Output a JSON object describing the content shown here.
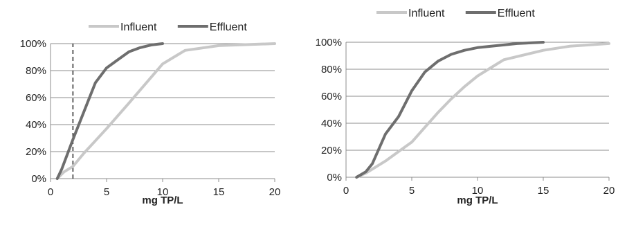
{
  "chart_data": [
    {
      "type": "line",
      "title": "",
      "xlabel": "mg TP/L",
      "ylabel": "",
      "xlim": [
        0,
        20
      ],
      "ylim": [
        0,
        100
      ],
      "x_ticks": [
        "0",
        "5",
        "10",
        "15",
        "20"
      ],
      "y_ticks": [
        "0%",
        "20%",
        "40%",
        "60%",
        "80%",
        "100%"
      ],
      "grid": "horizontal",
      "legend": "top",
      "reference_line": {
        "x": 2,
        "style": "dashed"
      },
      "series": [
        {
          "name": "Influent",
          "color": "#c8c8c8",
          "points": [
            [
              0.6,
              0
            ],
            [
              1.2,
              5
            ],
            [
              2,
              9
            ],
            [
              3,
              19
            ],
            [
              5,
              37
            ],
            [
              7,
              56
            ],
            [
              10,
              85
            ],
            [
              12,
              95
            ],
            [
              15,
              98.5
            ],
            [
              20,
              100
            ]
          ]
        },
        {
          "name": "Effluent",
          "color": "#6e6e6e",
          "points": [
            [
              0.6,
              0
            ],
            [
              1,
              7
            ],
            [
              2,
              29
            ],
            [
              3,
              50
            ],
            [
              4,
              71
            ],
            [
              5,
              82
            ],
            [
              6,
              88
            ],
            [
              7,
              94
            ],
            [
              8,
              97
            ],
            [
              9,
              99
            ],
            [
              10,
              100
            ]
          ]
        }
      ]
    },
    {
      "type": "line",
      "title": "",
      "xlabel": "mg TP/L",
      "ylabel": "",
      "xlim": [
        0,
        20
      ],
      "ylim": [
        0,
        100
      ],
      "x_ticks": [
        "0",
        "5",
        "10",
        "15",
        "20"
      ],
      "y_ticks": [
        "0%",
        "20%",
        "40%",
        "60%",
        "80%",
        "100%"
      ],
      "grid": "horizontal",
      "legend": "top",
      "series": [
        {
          "name": "Influent",
          "color": "#c8c8c8",
          "points": [
            [
              0.8,
              0
            ],
            [
              1.5,
              3
            ],
            [
              2,
              6
            ],
            [
              3,
              12
            ],
            [
              4,
              19
            ],
            [
              5,
              26
            ],
            [
              6,
              37
            ],
            [
              7,
              48
            ],
            [
              8,
              58
            ],
            [
              9,
              67
            ],
            [
              10,
              75
            ],
            [
              11,
              81
            ],
            [
              12,
              87
            ],
            [
              15,
              94
            ],
            [
              17,
              97
            ],
            [
              20,
              99
            ]
          ]
        },
        {
          "name": "Effluent",
          "color": "#6e6e6e",
          "points": [
            [
              0.8,
              0
            ],
            [
              1.5,
              4
            ],
            [
              2,
              10
            ],
            [
              3,
              32
            ],
            [
              4,
              45
            ],
            [
              5,
              64
            ],
            [
              6,
              78
            ],
            [
              7,
              86
            ],
            [
              8,
              91
            ],
            [
              9,
              94
            ],
            [
              10,
              96
            ],
            [
              12,
              98
            ],
            [
              13,
              99
            ],
            [
              15,
              100
            ]
          ]
        }
      ]
    }
  ]
}
